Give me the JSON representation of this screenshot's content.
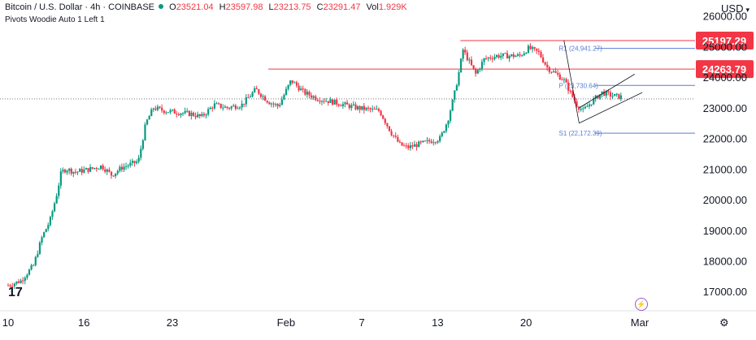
{
  "header": {
    "symbol": "Bitcoin / U.S. Dollar · 4h · COINBASE",
    "open_label": "O",
    "open": "23521.04",
    "high_label": "H",
    "high": "23597.98",
    "low_label": "L",
    "low": "23213.75",
    "close_label": "C",
    "close": "23291.47",
    "vol_label": "Vol",
    "vol": "1.929K",
    "indicator": "Pivots Woodie Auto 1 Left 1",
    "currency": "USD"
  },
  "colors": {
    "up": "#089981",
    "down": "#f23645",
    "pivot": "#5a7dd6",
    "bg": "#ffffff"
  },
  "icons": [
    "tradingview-logo-icon",
    "timezone-icon",
    "gear-icon",
    "chevron-down-icon"
  ],
  "logo_text": "17",
  "chart_data": {
    "type": "candlestick",
    "y_ticks": [
      "17000.00",
      "18000.00",
      "19000.00",
      "20000.00",
      "21000.00",
      "22000.00",
      "23000.00",
      "24000.00",
      "25000.00",
      "26000.00"
    ],
    "y_range": [
      16450,
      26150
    ],
    "x_ticks": [
      {
        "label": "10",
        "day": 10
      },
      {
        "label": "16",
        "day": 16
      },
      {
        "label": "23",
        "day": 23
      },
      {
        "label": "Feb",
        "day": 32
      },
      {
        "label": "7",
        "day": 38
      },
      {
        "label": "13",
        "day": 44
      },
      {
        "label": "20",
        "day": 51
      },
      {
        "label": "Mar",
        "day": 60
      }
    ],
    "x_range": [
      10,
      60
    ],
    "price_path": [
      [
        10,
        17200
      ],
      [
        11,
        17350
      ],
      [
        12,
        17850
      ],
      [
        12.7,
        18800
      ],
      [
        13.3,
        19300
      ],
      [
        13.8,
        20100
      ],
      [
        14.2,
        20900
      ],
      [
        14.6,
        21000
      ],
      [
        15.3,
        20900
      ],
      [
        16.5,
        21000
      ],
      [
        17.4,
        21100
      ],
      [
        18.2,
        20800
      ],
      [
        19,
        21050
      ],
      [
        20.3,
        21250
      ],
      [
        20.9,
        22500
      ],
      [
        21.5,
        23000
      ],
      [
        22.4,
        22900
      ],
      [
        23.4,
        22850
      ],
      [
        24.5,
        22800
      ],
      [
        25.3,
        22700
      ],
      [
        26.3,
        23100
      ],
      [
        27.3,
        23000
      ],
      [
        28.5,
        23100
      ],
      [
        29.6,
        23600
      ],
      [
        30.6,
        23200
      ],
      [
        31.4,
        23050
      ],
      [
        32.4,
        23900
      ],
      [
        33.4,
        23500
      ],
      [
        34.5,
        23300
      ],
      [
        35.6,
        23200
      ],
      [
        36.6,
        23100
      ],
      [
        37.6,
        23000
      ],
      [
        38.4,
        22950
      ],
      [
        39.4,
        22900
      ],
      [
        40.3,
        22200
      ],
      [
        41,
        21800
      ],
      [
        41.6,
        21700
      ],
      [
        42.4,
        21800
      ],
      [
        43.3,
        21900
      ],
      [
        44.2,
        22000
      ],
      [
        44.8,
        22600
      ],
      [
        45.3,
        23400
      ],
      [
        45.7,
        24200
      ],
      [
        46,
        24900
      ],
      [
        46.5,
        24500
      ],
      [
        47,
        24100
      ],
      [
        47.7,
        24600
      ],
      [
        48.7,
        24700
      ],
      [
        49.7,
        24700
      ],
      [
        50.5,
        24700
      ],
      [
        51.2,
        24950
      ],
      [
        52,
        24800
      ],
      [
        52.7,
        24300
      ],
      [
        53.4,
        24100
      ],
      [
        54,
        23900
      ],
      [
        54.5,
        23500
      ],
      [
        55,
        23100
      ],
      [
        55.5,
        22900
      ],
      [
        56.2,
        23200
      ],
      [
        57,
        23500
      ],
      [
        57.8,
        23400
      ],
      [
        58.6,
        23350
      ]
    ],
    "horizontal_levels": [
      {
        "value": 25197.29,
        "label": "25197.29",
        "from_day": 45.8,
        "line_color": "#f23645"
      },
      {
        "value": 24263.79,
        "label": "24263.79",
        "from_day": 30.6,
        "line_color": "#f23645"
      }
    ],
    "current_price": {
      "value": 23291.47
    },
    "pivots": [
      {
        "label": "R1 (24,941.27)",
        "value": 24941.27,
        "from_day": 54.5
      },
      {
        "label": "P (23,730.64)",
        "value": 23730.64,
        "from_day": 54.5
      },
      {
        "label": "S1 (22,172.39)",
        "value": 22172.39,
        "from_day": 54.5
      }
    ],
    "trendlines": [
      {
        "from": [
          54,
          25200
        ],
        "to": [
          55.2,
          22500
        ]
      },
      {
        "from": [
          55.2,
          23000
        ],
        "to": [
          59.6,
          24100
        ]
      },
      {
        "from": [
          55.2,
          22500
        ],
        "to": [
          60.2,
          23500
        ]
      }
    ]
  }
}
